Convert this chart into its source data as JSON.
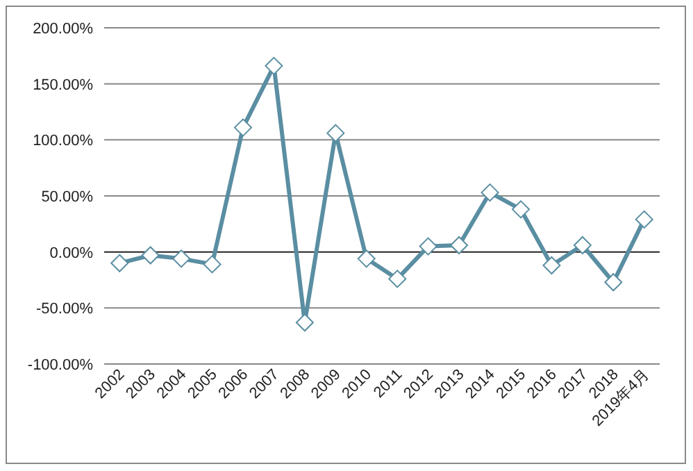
{
  "chart_data": {
    "type": "line",
    "categories": [
      "2002",
      "2003",
      "2004",
      "2005",
      "2006",
      "2007",
      "2008",
      "2009",
      "2010",
      "2011",
      "2012",
      "2013",
      "2014",
      "2015",
      "2016",
      "2017",
      "2018",
      "2019年4月"
    ],
    "series": [
      {
        "color": "#5a8ea2",
        "values": [
          -10,
          -3,
          -6,
          -11,
          111,
          166,
          -63,
          106,
          -6,
          -24,
          5,
          6,
          53,
          38,
          -12,
          6,
          -27,
          29
        ]
      }
    ],
    "ylim": [
      -100,
      200
    ],
    "yticks": [
      {
        "value": -100,
        "label": "-100.00%"
      },
      {
        "value": -50,
        "label": "-50.00%"
      },
      {
        "value": 0,
        "label": "0.00%"
      },
      {
        "value": 50,
        "label": "50.00%"
      },
      {
        "value": 100,
        "label": "100.00%"
      },
      {
        "value": 150,
        "label": "150.00%"
      },
      {
        "value": 200,
        "label": "200.00%"
      }
    ],
    "grid": "y",
    "marker": "diamond",
    "line_style": "solid"
  }
}
